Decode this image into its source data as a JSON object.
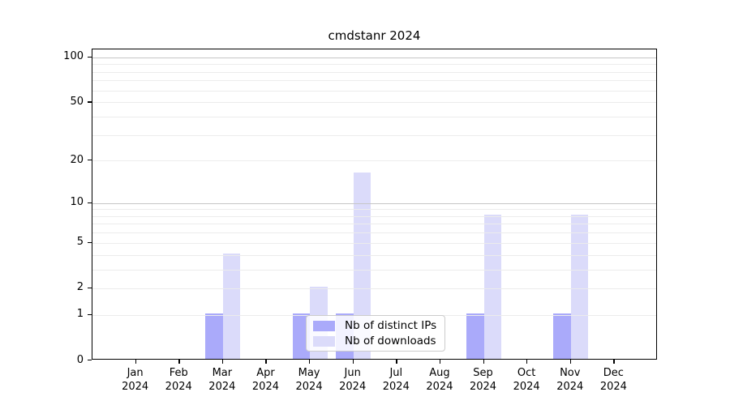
{
  "title": "cmdstanr 2024",
  "chart_data": {
    "type": "bar",
    "title": "cmdstanr 2024",
    "categories": [
      "Jan",
      "Feb",
      "Mar",
      "Apr",
      "May",
      "Jun",
      "Jul",
      "Aug",
      "Sep",
      "Oct",
      "Nov",
      "Dec"
    ],
    "year": "2024",
    "series": [
      {
        "name": "Nb of distinct IPs",
        "color": "#aaaafa",
        "values": [
          0,
          0,
          1,
          0,
          1,
          1,
          0,
          0,
          1,
          0,
          1,
          0
        ]
      },
      {
        "name": "Nb of downloads",
        "color": "#dbdbfa",
        "values": [
          0,
          0,
          4,
          0,
          2,
          16,
          0,
          0,
          8,
          0,
          8,
          0
        ]
      }
    ],
    "xlabel": "",
    "ylabel": "",
    "yscale": "log1p",
    "ylim": [
      0,
      113
    ],
    "yticks": [
      0,
      1,
      2,
      5,
      10,
      20,
      50,
      100
    ],
    "grid": true,
    "grid_minor_levels": [
      1,
      2,
      3,
      4,
      5,
      6,
      7,
      8,
      9,
      20,
      30,
      40,
      50,
      60,
      70,
      80,
      90
    ],
    "grid_major_levels": [
      10,
      100
    ],
    "legend_position": "lower center"
  }
}
